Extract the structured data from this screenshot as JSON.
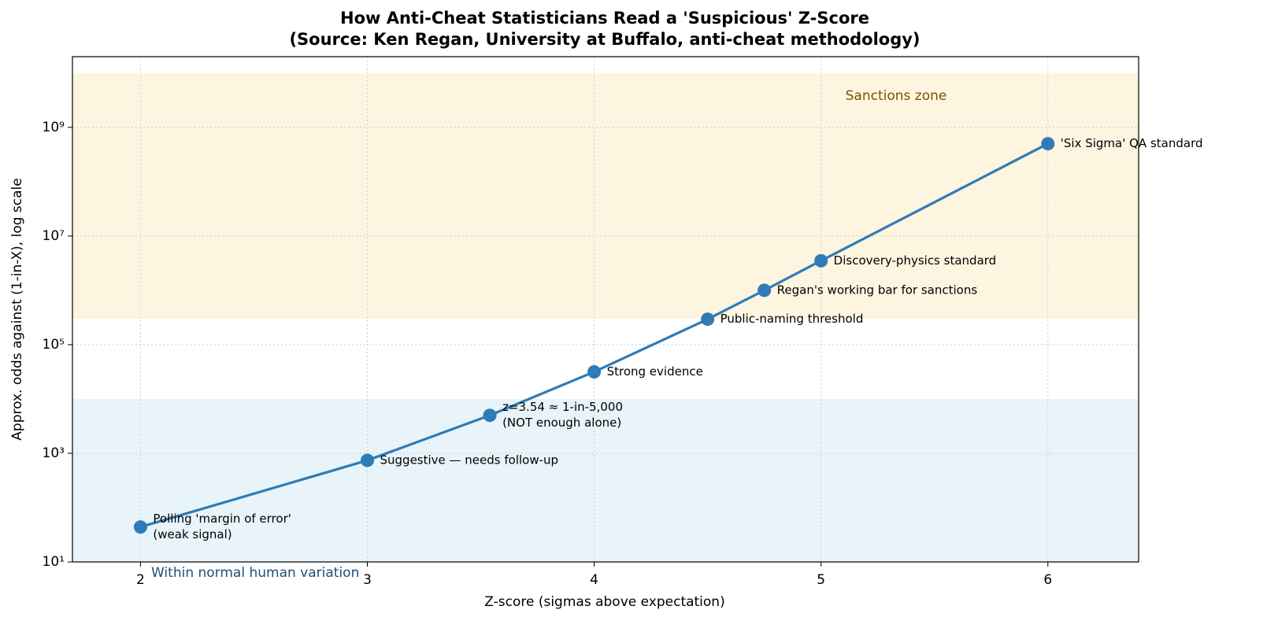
{
  "chart_data": {
    "type": "line",
    "title": "How Anti-Cheat Statisticians Read a 'Suspicious' Z-Score",
    "subtitle": "(Source: Ken Regan, University at Buffalo, anti-cheat methodology)",
    "x_label": "Z-score (sigmas above expectation)",
    "y_label": "Approx. odds against (1-in-X), log scale",
    "log_y": true,
    "grid": true,
    "xlim": [
      1.7,
      6.4
    ],
    "ylim": [
      10,
      20000000000
    ],
    "xticks": [
      2,
      3,
      4,
      5,
      6
    ],
    "yticks": [
      {
        "value": 10,
        "label": "10¹"
      },
      {
        "value": 1000,
        "label": "10³"
      },
      {
        "value": 100000,
        "label": "10⁵"
      },
      {
        "value": 10000000,
        "label": "10⁷"
      },
      {
        "value": 1000000000,
        "label": "10⁹"
      }
    ],
    "bands": [
      {
        "ylim": [
          300000,
          10000000000
        ],
        "label": "Sanctions zone",
        "color": "#fdf5e0",
        "label_color": "#7a5200"
      },
      {
        "ylim": [
          10,
          10000
        ],
        "label": "Within normal human variation",
        "color": "#e8f4f9",
        "label_color": "#1f4e79"
      }
    ],
    "series": [
      {
        "color": "#2e7bb7",
        "x": [
          2,
          3,
          3.54,
          4,
          4.5,
          4.75,
          5,
          6
        ],
        "values": [
          44,
          741,
          5000,
          31574,
          294000,
          1000000,
          3500000,
          500000000
        ],
        "point_labels": [
          [
            "Polling 'margin of error'",
            "(weak signal)"
          ],
          [
            "Suggestive — needs follow-up"
          ],
          [
            "z=3.54 ≈ 1-in-5,000",
            "(NOT enough alone)"
          ],
          [
            "Strong evidence"
          ],
          [
            "Public-naming threshold"
          ],
          [
            "Regan's working bar for sanctions"
          ],
          [
            "Discovery-physics standard"
          ],
          [
            "'Six Sigma' QA standard"
          ]
        ]
      }
    ]
  }
}
